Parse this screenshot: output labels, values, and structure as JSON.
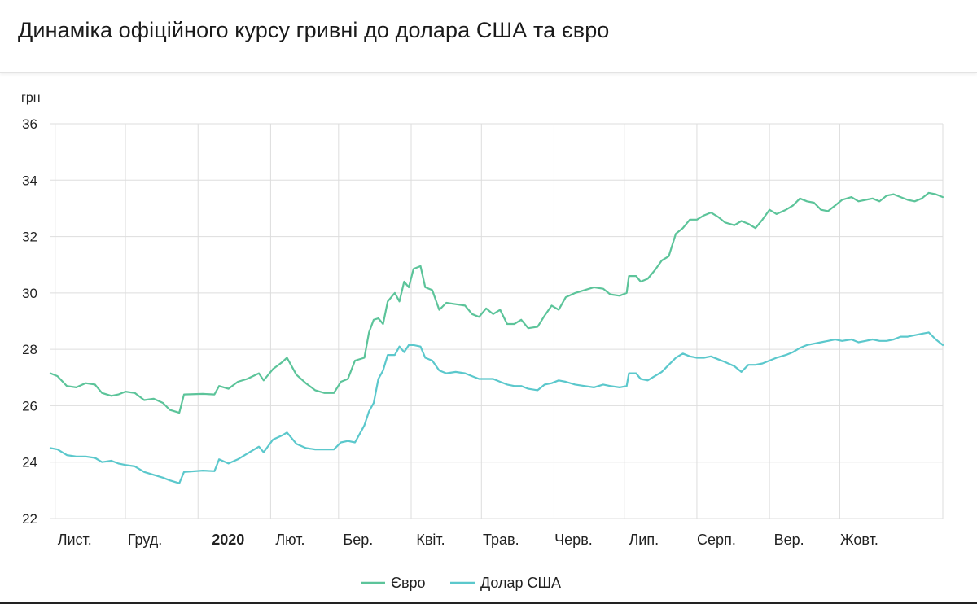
{
  "title": "Динаміка офіційного курсу гривні до долара США та євро",
  "colors": {
    "euro": "#5cc49a",
    "usd": "#5bc8cc",
    "grid": "#dddddd",
    "text": "#222222"
  },
  "chart_data": {
    "type": "line",
    "title": "Динаміка офіційного курсу гривні до долара США та євро",
    "ylabel": "грн",
    "ylim": [
      22,
      36
    ],
    "yticks": [
      22,
      24,
      26,
      28,
      30,
      32,
      34,
      36
    ],
    "xlim": [
      "2019-10-30",
      "2020-11-14"
    ],
    "xticks": [
      {
        "date": "2019-11-01",
        "label": "Лист.",
        "bold": false
      },
      {
        "date": "2019-12-01",
        "label": "Груд.",
        "bold": false
      },
      {
        "date": "2020-01-01",
        "label": "2020",
        "bold": true
      },
      {
        "date": "2020-02-01",
        "label": "Лют.",
        "bold": false
      },
      {
        "date": "2020-03-01",
        "label": "Бер.",
        "bold": false
      },
      {
        "date": "2020-04-01",
        "label": "Квіт.",
        "bold": false
      },
      {
        "date": "2020-05-01",
        "label": "Трав.",
        "bold": false
      },
      {
        "date": "2020-06-01",
        "label": "Черв.",
        "bold": false
      },
      {
        "date": "2020-07-01",
        "label": "Лип.",
        "bold": false
      },
      {
        "date": "2020-08-01",
        "label": "Серп.",
        "bold": false
      },
      {
        "date": "2020-09-01",
        "label": "Вер.",
        "bold": false
      },
      {
        "date": "2020-10-01",
        "label": "Жовт.",
        "bold": false
      }
    ],
    "grid": true,
    "legend_position": "bottom-center",
    "series": [
      {
        "name": "Євро",
        "color": "#5cc49a",
        "points": [
          [
            "2019-10-30",
            27.15
          ],
          [
            "2019-11-02",
            27.05
          ],
          [
            "2019-11-06",
            26.7
          ],
          [
            "2019-11-10",
            26.65
          ],
          [
            "2019-11-14",
            26.8
          ],
          [
            "2019-11-18",
            26.75
          ],
          [
            "2019-11-21",
            26.45
          ],
          [
            "2019-11-25",
            26.35
          ],
          [
            "2019-11-28",
            26.4
          ],
          [
            "2019-12-01",
            26.5
          ],
          [
            "2019-12-05",
            26.45
          ],
          [
            "2019-12-09",
            26.2
          ],
          [
            "2019-12-13",
            26.25
          ],
          [
            "2019-12-17",
            26.1
          ],
          [
            "2019-12-20",
            25.85
          ],
          [
            "2019-12-24",
            25.75
          ],
          [
            "2019-12-26",
            26.4
          ],
          [
            "2020-01-03",
            26.42
          ],
          [
            "2020-01-08",
            26.4
          ],
          [
            "2020-01-10",
            26.7
          ],
          [
            "2020-01-14",
            26.6
          ],
          [
            "2020-01-18",
            26.85
          ],
          [
            "2020-01-22",
            26.95
          ],
          [
            "2020-01-27",
            27.15
          ],
          [
            "2020-01-29",
            26.9
          ],
          [
            "2020-02-02",
            27.3
          ],
          [
            "2020-02-06",
            27.55
          ],
          [
            "2020-02-08",
            27.7
          ],
          [
            "2020-02-12",
            27.1
          ],
          [
            "2020-02-16",
            26.8
          ],
          [
            "2020-02-20",
            26.55
          ],
          [
            "2020-02-24",
            26.45
          ],
          [
            "2020-02-28",
            26.45
          ],
          [
            "2020-03-02",
            26.85
          ],
          [
            "2020-03-05",
            26.95
          ],
          [
            "2020-03-08",
            27.6
          ],
          [
            "2020-03-12",
            27.7
          ],
          [
            "2020-03-14",
            28.6
          ],
          [
            "2020-03-16",
            29.05
          ],
          [
            "2020-03-18",
            29.1
          ],
          [
            "2020-03-20",
            28.9
          ],
          [
            "2020-03-22",
            29.7
          ],
          [
            "2020-03-25",
            30.0
          ],
          [
            "2020-03-27",
            29.7
          ],
          [
            "2020-03-29",
            30.4
          ],
          [
            "2020-03-31",
            30.2
          ],
          [
            "2020-04-02",
            30.85
          ],
          [
            "2020-04-05",
            30.95
          ],
          [
            "2020-04-07",
            30.2
          ],
          [
            "2020-04-10",
            30.1
          ],
          [
            "2020-04-13",
            29.4
          ],
          [
            "2020-04-16",
            29.65
          ],
          [
            "2020-04-20",
            29.6
          ],
          [
            "2020-04-24",
            29.55
          ],
          [
            "2020-04-27",
            29.25
          ],
          [
            "2020-04-30",
            29.15
          ],
          [
            "2020-05-03",
            29.45
          ],
          [
            "2020-05-06",
            29.25
          ],
          [
            "2020-05-09",
            29.4
          ],
          [
            "2020-05-12",
            28.9
          ],
          [
            "2020-05-15",
            28.9
          ],
          [
            "2020-05-18",
            29.05
          ],
          [
            "2020-05-21",
            28.75
          ],
          [
            "2020-05-25",
            28.8
          ],
          [
            "2020-05-28",
            29.2
          ],
          [
            "2020-05-31",
            29.55
          ],
          [
            "2020-06-03",
            29.4
          ],
          [
            "2020-06-06",
            29.85
          ],
          [
            "2020-06-10",
            30.0
          ],
          [
            "2020-06-14",
            30.1
          ],
          [
            "2020-06-18",
            30.2
          ],
          [
            "2020-06-22",
            30.15
          ],
          [
            "2020-06-25",
            29.95
          ],
          [
            "2020-06-29",
            29.9
          ],
          [
            "2020-07-02",
            30.0
          ],
          [
            "2020-07-03",
            30.6
          ],
          [
            "2020-07-06",
            30.6
          ],
          [
            "2020-07-08",
            30.4
          ],
          [
            "2020-07-11",
            30.5
          ],
          [
            "2020-07-14",
            30.8
          ],
          [
            "2020-07-17",
            31.15
          ],
          [
            "2020-07-20",
            31.3
          ],
          [
            "2020-07-23",
            32.1
          ],
          [
            "2020-07-26",
            32.3
          ],
          [
            "2020-07-29",
            32.6
          ],
          [
            "2020-08-01",
            32.6
          ],
          [
            "2020-08-04",
            32.75
          ],
          [
            "2020-08-07",
            32.85
          ],
          [
            "2020-08-10",
            32.7
          ],
          [
            "2020-08-13",
            32.5
          ],
          [
            "2020-08-17",
            32.4
          ],
          [
            "2020-08-20",
            32.55
          ],
          [
            "2020-08-23",
            32.45
          ],
          [
            "2020-08-26",
            32.3
          ],
          [
            "2020-08-29",
            32.6
          ],
          [
            "2020-09-01",
            32.95
          ],
          [
            "2020-09-04",
            32.8
          ],
          [
            "2020-09-08",
            32.95
          ],
          [
            "2020-09-11",
            33.1
          ],
          [
            "2020-09-14",
            33.35
          ],
          [
            "2020-09-17",
            33.25
          ],
          [
            "2020-09-20",
            33.2
          ],
          [
            "2020-09-23",
            32.95
          ],
          [
            "2020-09-26",
            32.9
          ],
          [
            "2020-09-29",
            33.1
          ],
          [
            "2020-10-02",
            33.3
          ],
          [
            "2020-10-06",
            33.4
          ],
          [
            "2020-10-09",
            33.25
          ],
          [
            "2020-10-12",
            33.3
          ],
          [
            "2020-10-15",
            33.35
          ],
          [
            "2020-10-18",
            33.25
          ],
          [
            "2020-10-21",
            33.45
          ],
          [
            "2020-10-24",
            33.5
          ],
          [
            "2020-10-27",
            33.4
          ],
          [
            "2020-10-30",
            33.3
          ],
          [
            "2020-11-02",
            33.25
          ],
          [
            "2020-11-05",
            33.35
          ],
          [
            "2020-11-08",
            33.55
          ],
          [
            "2020-11-11",
            33.5
          ],
          [
            "2020-11-14",
            33.4
          ]
        ]
      },
      {
        "name": "Долар США",
        "color": "#5bc8cc",
        "points": [
          [
            "2019-10-30",
            24.5
          ],
          [
            "2019-11-02",
            24.45
          ],
          [
            "2019-11-06",
            24.25
          ],
          [
            "2019-11-10",
            24.2
          ],
          [
            "2019-11-14",
            24.2
          ],
          [
            "2019-11-18",
            24.15
          ],
          [
            "2019-11-21",
            24.0
          ],
          [
            "2019-11-25",
            24.05
          ],
          [
            "2019-11-28",
            23.95
          ],
          [
            "2019-12-01",
            23.9
          ],
          [
            "2019-12-05",
            23.85
          ],
          [
            "2019-12-09",
            23.65
          ],
          [
            "2019-12-13",
            23.55
          ],
          [
            "2019-12-17",
            23.45
          ],
          [
            "2019-12-20",
            23.35
          ],
          [
            "2019-12-24",
            23.25
          ],
          [
            "2019-12-26",
            23.65
          ],
          [
            "2020-01-03",
            23.7
          ],
          [
            "2020-01-08",
            23.68
          ],
          [
            "2020-01-10",
            24.1
          ],
          [
            "2020-01-14",
            23.95
          ],
          [
            "2020-01-18",
            24.1
          ],
          [
            "2020-01-22",
            24.3
          ],
          [
            "2020-01-27",
            24.55
          ],
          [
            "2020-01-29",
            24.35
          ],
          [
            "2020-02-02",
            24.8
          ],
          [
            "2020-02-06",
            24.95
          ],
          [
            "2020-02-08",
            25.05
          ],
          [
            "2020-02-12",
            24.65
          ],
          [
            "2020-02-16",
            24.5
          ],
          [
            "2020-02-20",
            24.45
          ],
          [
            "2020-02-24",
            24.45
          ],
          [
            "2020-02-28",
            24.45
          ],
          [
            "2020-03-02",
            24.7
          ],
          [
            "2020-03-05",
            24.75
          ],
          [
            "2020-03-08",
            24.7
          ],
          [
            "2020-03-12",
            25.3
          ],
          [
            "2020-03-14",
            25.8
          ],
          [
            "2020-03-16",
            26.1
          ],
          [
            "2020-03-18",
            26.95
          ],
          [
            "2020-03-20",
            27.25
          ],
          [
            "2020-03-22",
            27.8
          ],
          [
            "2020-03-25",
            27.8
          ],
          [
            "2020-03-27",
            28.1
          ],
          [
            "2020-03-29",
            27.9
          ],
          [
            "2020-03-31",
            28.15
          ],
          [
            "2020-04-02",
            28.15
          ],
          [
            "2020-04-05",
            28.1
          ],
          [
            "2020-04-07",
            27.7
          ],
          [
            "2020-04-10",
            27.6
          ],
          [
            "2020-04-13",
            27.25
          ],
          [
            "2020-04-16",
            27.15
          ],
          [
            "2020-04-20",
            27.2
          ],
          [
            "2020-04-24",
            27.15
          ],
          [
            "2020-04-27",
            27.05
          ],
          [
            "2020-04-30",
            26.95
          ],
          [
            "2020-05-03",
            26.95
          ],
          [
            "2020-05-06",
            26.95
          ],
          [
            "2020-05-09",
            26.85
          ],
          [
            "2020-05-12",
            26.75
          ],
          [
            "2020-05-15",
            26.7
          ],
          [
            "2020-05-18",
            26.7
          ],
          [
            "2020-05-21",
            26.6
          ],
          [
            "2020-05-25",
            26.55
          ],
          [
            "2020-05-28",
            26.75
          ],
          [
            "2020-05-31",
            26.8
          ],
          [
            "2020-06-03",
            26.9
          ],
          [
            "2020-06-06",
            26.85
          ],
          [
            "2020-06-10",
            26.75
          ],
          [
            "2020-06-14",
            26.7
          ],
          [
            "2020-06-18",
            26.65
          ],
          [
            "2020-06-22",
            26.75
          ],
          [
            "2020-06-25",
            26.7
          ],
          [
            "2020-06-29",
            26.65
          ],
          [
            "2020-07-02",
            26.7
          ],
          [
            "2020-07-03",
            27.15
          ],
          [
            "2020-07-06",
            27.15
          ],
          [
            "2020-07-08",
            26.95
          ],
          [
            "2020-07-11",
            26.9
          ],
          [
            "2020-07-14",
            27.05
          ],
          [
            "2020-07-17",
            27.2
          ],
          [
            "2020-07-20",
            27.45
          ],
          [
            "2020-07-23",
            27.7
          ],
          [
            "2020-07-26",
            27.85
          ],
          [
            "2020-07-29",
            27.75
          ],
          [
            "2020-08-01",
            27.7
          ],
          [
            "2020-08-04",
            27.7
          ],
          [
            "2020-08-07",
            27.75
          ],
          [
            "2020-08-10",
            27.65
          ],
          [
            "2020-08-13",
            27.55
          ],
          [
            "2020-08-17",
            27.4
          ],
          [
            "2020-08-20",
            27.2
          ],
          [
            "2020-08-23",
            27.45
          ],
          [
            "2020-08-26",
            27.45
          ],
          [
            "2020-08-29",
            27.5
          ],
          [
            "2020-09-01",
            27.6
          ],
          [
            "2020-09-04",
            27.7
          ],
          [
            "2020-09-08",
            27.8
          ],
          [
            "2020-09-11",
            27.9
          ],
          [
            "2020-09-14",
            28.05
          ],
          [
            "2020-09-17",
            28.15
          ],
          [
            "2020-09-20",
            28.2
          ],
          [
            "2020-09-23",
            28.25
          ],
          [
            "2020-09-26",
            28.3
          ],
          [
            "2020-09-29",
            28.35
          ],
          [
            "2020-10-02",
            28.3
          ],
          [
            "2020-10-06",
            28.35
          ],
          [
            "2020-10-09",
            28.25
          ],
          [
            "2020-10-12",
            28.3
          ],
          [
            "2020-10-15",
            28.35
          ],
          [
            "2020-10-18",
            28.3
          ],
          [
            "2020-10-21",
            28.3
          ],
          [
            "2020-10-24",
            28.35
          ],
          [
            "2020-10-27",
            28.45
          ],
          [
            "2020-10-30",
            28.45
          ],
          [
            "2020-11-02",
            28.5
          ],
          [
            "2020-11-05",
            28.55
          ],
          [
            "2020-11-08",
            28.6
          ],
          [
            "2020-11-11",
            28.35
          ],
          [
            "2020-11-14",
            28.15
          ]
        ]
      }
    ]
  }
}
